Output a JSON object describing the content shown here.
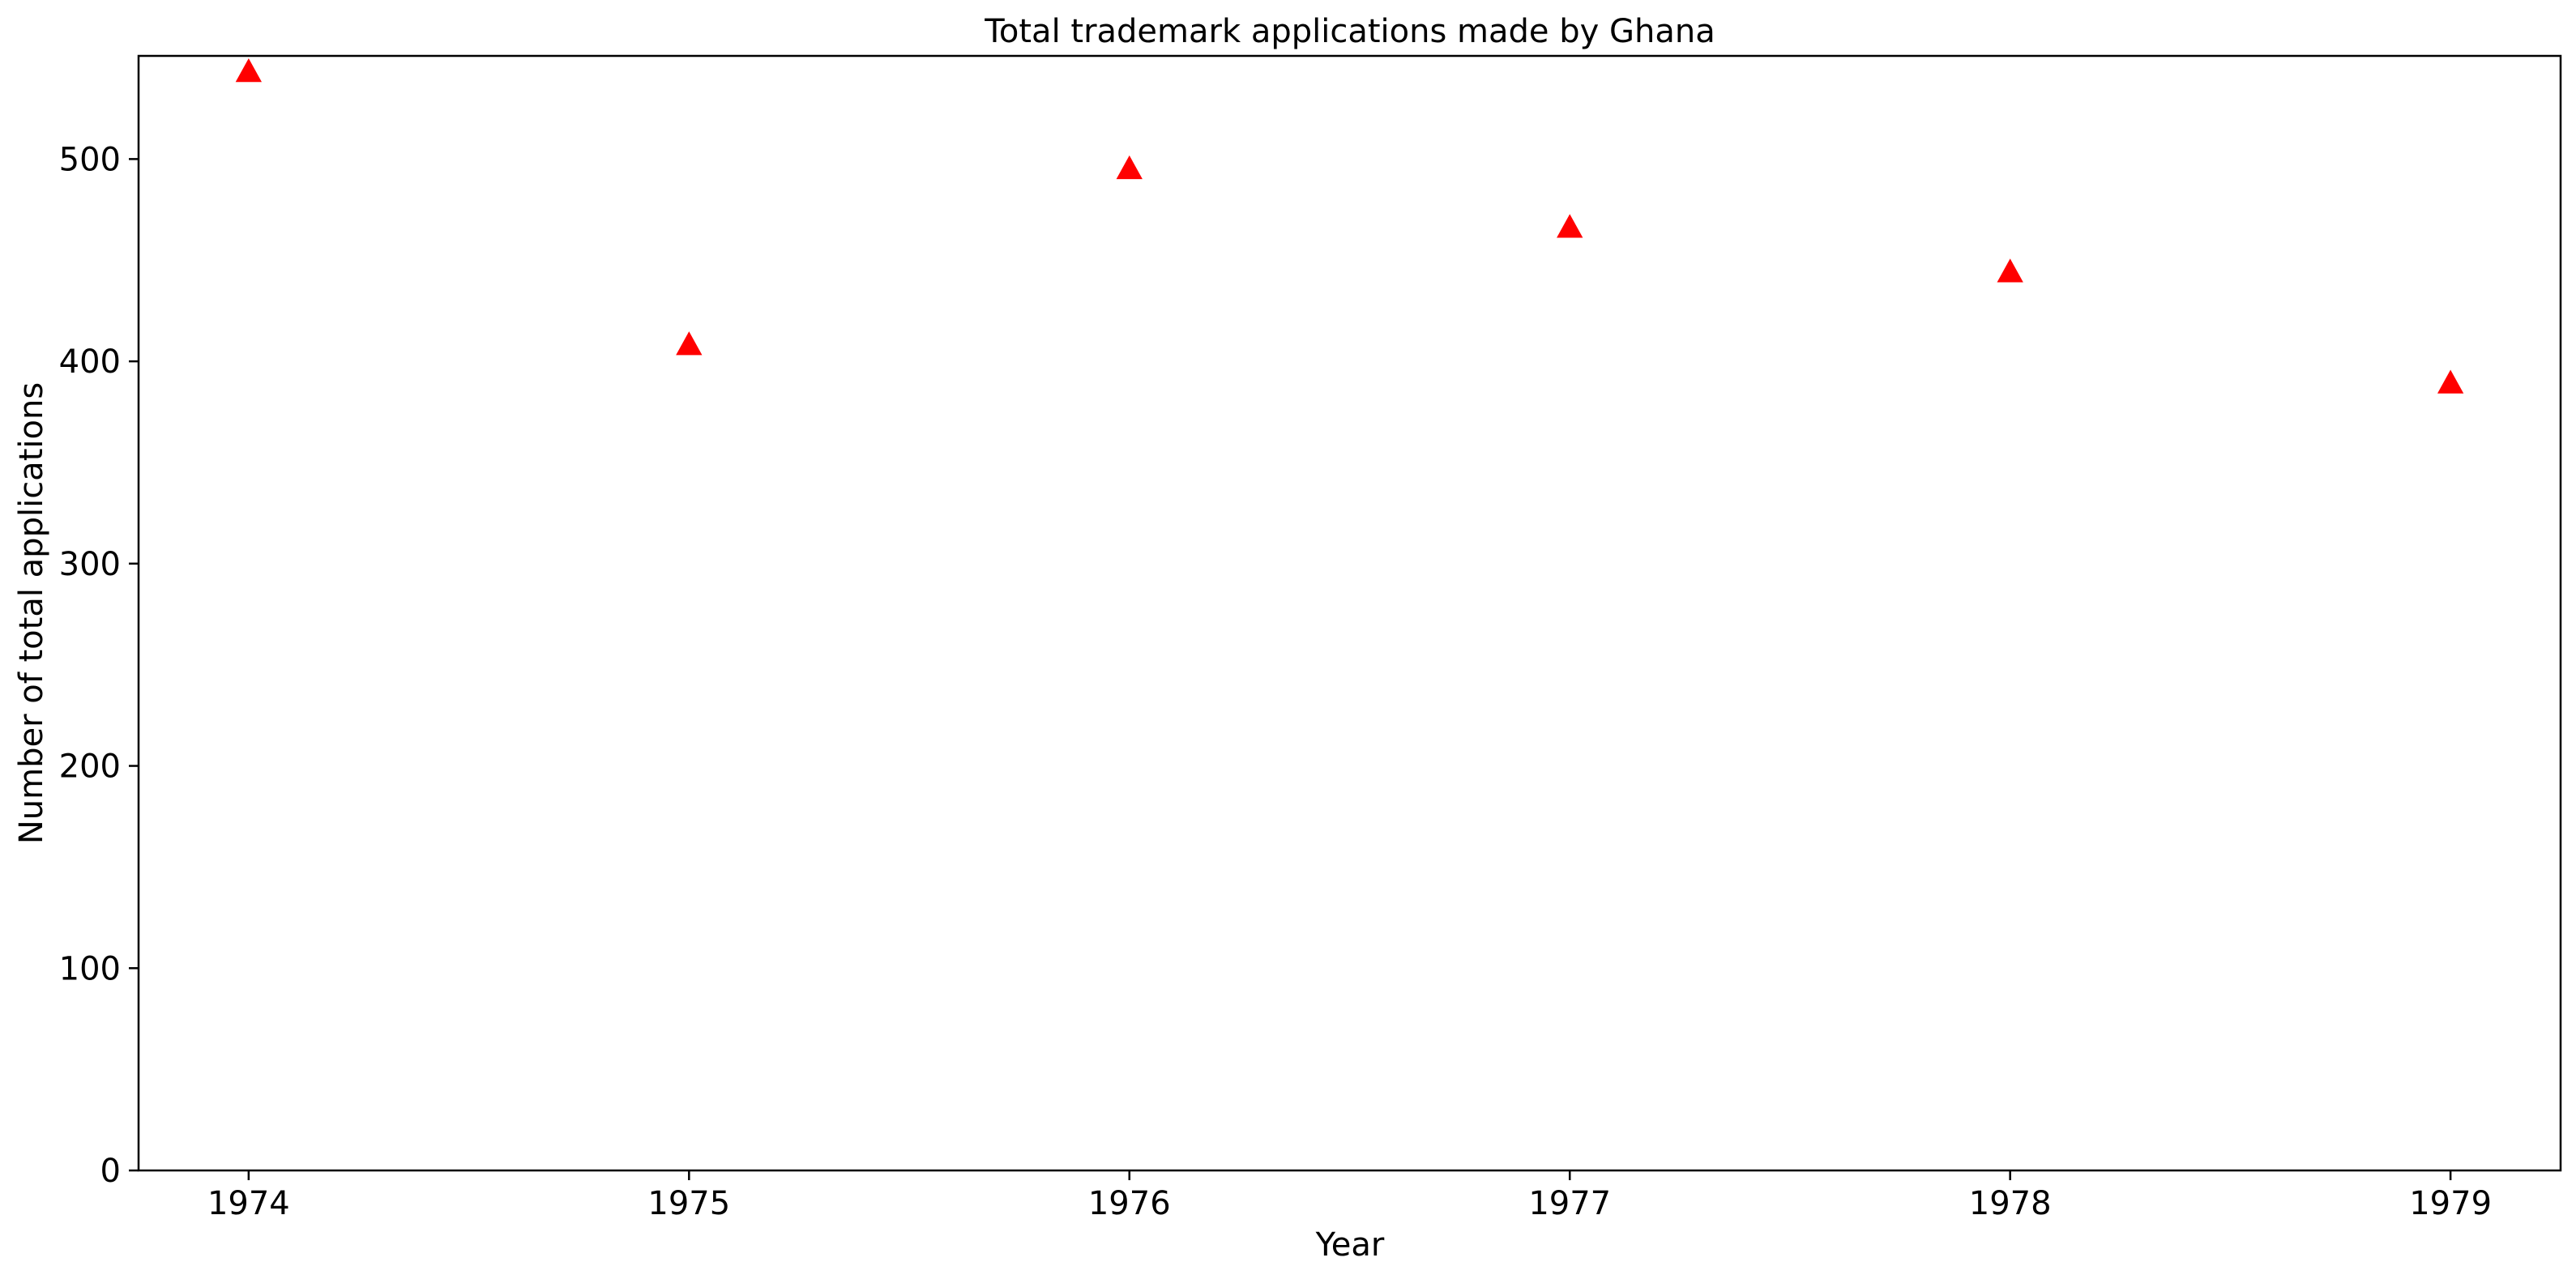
{
  "chart_data": {
    "type": "scatter",
    "title": "Total trademark applications made by Ghana",
    "xlabel": "Year",
    "ylabel": "Number of total applications",
    "x": [
      1974,
      1975,
      1976,
      1977,
      1978,
      1979
    ],
    "series": [
      {
        "values": [
          543,
          408,
          495,
          466,
          444,
          389
        ],
        "color": "#ff0000",
        "marker": "triangle-up"
      }
    ],
    "x_ticks": [
      "1974",
      "1975",
      "1976",
      "1977",
      "1978",
      "1979"
    ],
    "y_ticks": [
      "0",
      "100",
      "200",
      "300",
      "400",
      "500"
    ],
    "xlim": [
      1973.75,
      1979.25
    ],
    "ylim": [
      0,
      551
    ],
    "grid": false,
    "legend": "none"
  }
}
